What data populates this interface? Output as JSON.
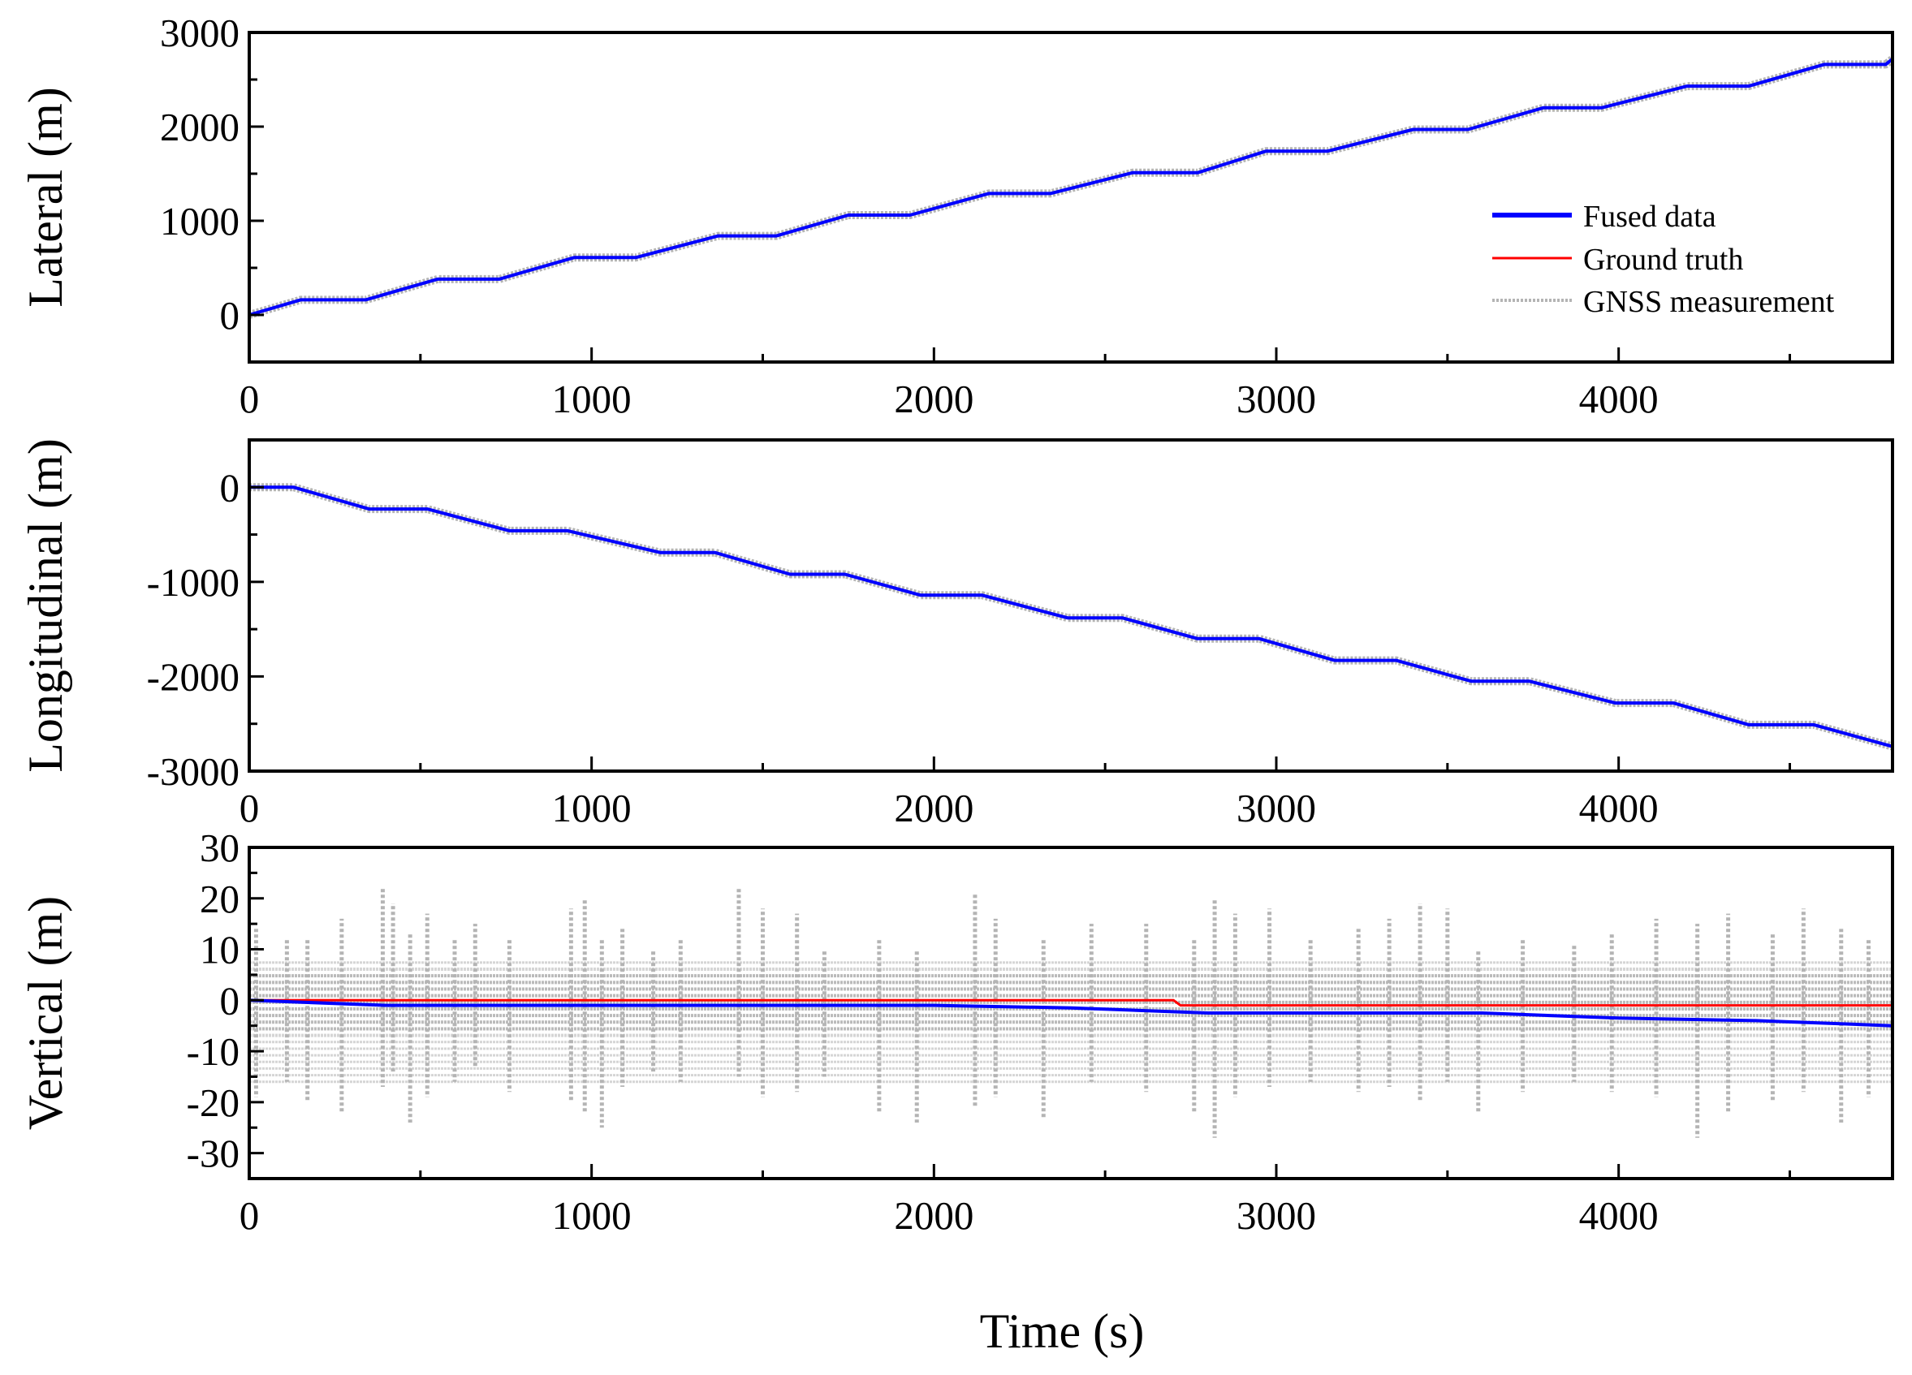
{
  "figure": {
    "xlabel": "Time (s)",
    "colors": {
      "fused": "#0000ff",
      "truth": "#ff0000",
      "gnss": "#b4b4b4",
      "axes": "#000000"
    }
  },
  "legend": {
    "placement": "right, inside top panel",
    "entries": [
      {
        "label": "Fused data",
        "color": "#0000ff"
      },
      {
        "label": "Ground truth",
        "color": "#ff0000"
      },
      {
        "label": "GNSS measurement",
        "color": "#b4b4b4"
      }
    ]
  },
  "chart_data": [
    {
      "type": "line",
      "title": "",
      "xlabel": "",
      "ylabel": "Lateral (m)",
      "xlim": [
        0,
        4800
      ],
      "ylim": [
        -500,
        3000
      ],
      "xticks": [
        0,
        1000,
        2000,
        3000,
        4000
      ],
      "xtick_labels": [
        "0",
        "1000",
        "2000",
        "3000",
        "4000"
      ],
      "yticks": [
        0,
        1000,
        2000,
        3000
      ],
      "ytick_labels": [
        "0",
        "1000",
        "2000",
        "3000"
      ],
      "grid": false,
      "series": [
        {
          "name": "GNSS measurement",
          "x": [
            0,
            150,
            340,
            550,
            730,
            950,
            1130,
            1370,
            1540,
            1750,
            1930,
            2160,
            2340,
            2580,
            2770,
            2970,
            3150,
            3400,
            3560,
            3780,
            3950,
            4200,
            4380,
            4600,
            4780,
            4800
          ],
          "y": [
            0,
            160,
            160,
            380,
            380,
            610,
            610,
            840,
            840,
            1060,
            1060,
            1290,
            1290,
            1510,
            1510,
            1740,
            1740,
            1970,
            1970,
            2200,
            2200,
            2430,
            2430,
            2660,
            2660,
            2720
          ]
        },
        {
          "name": "Ground truth",
          "x": [
            0,
            150,
            340,
            550,
            730,
            950,
            1130,
            1370,
            1540,
            1750,
            1930,
            2160,
            2340,
            2580,
            2770,
            2970,
            3150,
            3400,
            3560,
            3780,
            3950,
            4200,
            4380,
            4600,
            4780,
            4800
          ],
          "y": [
            0,
            160,
            160,
            380,
            380,
            610,
            610,
            840,
            840,
            1060,
            1060,
            1290,
            1290,
            1510,
            1510,
            1740,
            1740,
            1970,
            1970,
            2200,
            2200,
            2430,
            2430,
            2660,
            2660,
            2720
          ]
        },
        {
          "name": "Fused data",
          "x": [
            0,
            150,
            340,
            550,
            730,
            950,
            1130,
            1370,
            1540,
            1750,
            1930,
            2160,
            2340,
            2580,
            2770,
            2970,
            3150,
            3400,
            3560,
            3780,
            3950,
            4200,
            4380,
            4600,
            4780,
            4800
          ],
          "y": [
            0,
            160,
            160,
            380,
            380,
            610,
            610,
            840,
            840,
            1060,
            1060,
            1290,
            1290,
            1510,
            1510,
            1740,
            1740,
            1970,
            1970,
            2200,
            2200,
            2430,
            2430,
            2660,
            2660,
            2720
          ]
        }
      ]
    },
    {
      "type": "line",
      "title": "",
      "xlabel": "",
      "ylabel": "Longitudinal (m)",
      "xlim": [
        0,
        4800
      ],
      "ylim": [
        -3000,
        500
      ],
      "xticks": [
        0,
        1000,
        2000,
        3000,
        4000
      ],
      "xtick_labels": [
        "0",
        "1000",
        "2000",
        "3000",
        "4000"
      ],
      "yticks": [
        0,
        -1000,
        -2000,
        -3000
      ],
      "ytick_labels": [
        "0",
        "-1000",
        "-2000",
        "-3000"
      ],
      "grid": false,
      "series": [
        {
          "name": "GNSS measurement",
          "x": [
            0,
            130,
            350,
            520,
            760,
            930,
            1200,
            1360,
            1580,
            1740,
            1960,
            2140,
            2390,
            2550,
            2770,
            2950,
            3170,
            3350,
            3570,
            3740,
            3990,
            4160,
            4380,
            4570,
            4800
          ],
          "y": [
            0,
            0,
            -230,
            -230,
            -460,
            -460,
            -690,
            -690,
            -920,
            -920,
            -1140,
            -1140,
            -1380,
            -1380,
            -1600,
            -1600,
            -1830,
            -1830,
            -2050,
            -2050,
            -2280,
            -2280,
            -2510,
            -2510,
            -2740
          ]
        },
        {
          "name": "Ground truth",
          "x": [
            0,
            130,
            350,
            520,
            760,
            930,
            1200,
            1360,
            1580,
            1740,
            1960,
            2140,
            2390,
            2550,
            2770,
            2950,
            3170,
            3350,
            3570,
            3740,
            3990,
            4160,
            4380,
            4570,
            4800
          ],
          "y": [
            0,
            0,
            -230,
            -230,
            -460,
            -460,
            -690,
            -690,
            -920,
            -920,
            -1140,
            -1140,
            -1380,
            -1380,
            -1600,
            -1600,
            -1830,
            -1830,
            -2050,
            -2050,
            -2280,
            -2280,
            -2510,
            -2510,
            -2740
          ]
        },
        {
          "name": "Fused data",
          "x": [
            0,
            130,
            350,
            520,
            760,
            930,
            1200,
            1360,
            1580,
            1740,
            1960,
            2140,
            2390,
            2550,
            2770,
            2950,
            3170,
            3350,
            3570,
            3740,
            3990,
            4160,
            4380,
            4570,
            4800
          ],
          "y": [
            0,
            0,
            -230,
            -230,
            -460,
            -460,
            -690,
            -690,
            -920,
            -920,
            -1140,
            -1140,
            -1380,
            -1380,
            -1600,
            -1600,
            -1830,
            -1830,
            -2050,
            -2050,
            -2280,
            -2280,
            -2510,
            -2510,
            -2740
          ]
        }
      ]
    },
    {
      "type": "line",
      "title": "",
      "xlabel": "",
      "ylabel": "Vertical (m)",
      "xlim": [
        0,
        4800
      ],
      "ylim": [
        -35,
        30
      ],
      "xticks": [
        0,
        1000,
        2000,
        3000,
        4000
      ],
      "xtick_labels": [
        "0",
        "1000",
        "2000",
        "3000",
        "4000"
      ],
      "yticks": [
        30,
        20,
        10,
        0,
        -10,
        -20,
        -30
      ],
      "ytick_labels": [
        "30",
        "20",
        "10",
        "0",
        "-10",
        "-20",
        "-30"
      ],
      "grid": false,
      "gnss_spikes": {
        "x": [
          20,
          110,
          170,
          270,
          390,
          420,
          470,
          520,
          600,
          660,
          760,
          940,
          980,
          1030,
          1090,
          1180,
          1260,
          1430,
          1500,
          1600,
          1680,
          1840,
          1950,
          2120,
          2180,
          2320,
          2460,
          2620,
          2760,
          2820,
          2880,
          2980,
          3100,
          3240,
          3330,
          3420,
          3500,
          3590,
          3720,
          3870,
          3980,
          4110,
          4230,
          4320,
          4450,
          4540,
          4650,
          4730
        ],
        "upper": [
          14,
          12,
          12,
          16,
          22,
          19,
          13,
          17,
          12,
          15,
          12,
          18,
          20,
          12,
          14,
          10,
          12,
          22,
          18,
          17,
          10,
          12,
          10,
          21,
          16,
          12,
          15,
          15,
          12,
          20,
          17,
          18,
          12,
          14,
          16,
          19,
          18,
          10,
          12,
          11,
          13,
          16,
          15,
          17,
          13,
          18,
          14,
          12
        ],
        "lower": [
          -19,
          -16,
          -20,
          -22,
          -17,
          -14,
          -24,
          -19,
          -16,
          -13,
          -18,
          -20,
          -22,
          -25,
          -17,
          -14,
          -16,
          -15,
          -19,
          -18,
          -15,
          -22,
          -24,
          -21,
          -19,
          -23,
          -16,
          -18,
          -22,
          -27,
          -19,
          -17,
          -16,
          -18,
          -17,
          -20,
          -16,
          -22,
          -18,
          -16,
          -18,
          -19,
          -27,
          -22,
          -20,
          -18,
          -24,
          -19
        ]
      },
      "series": [
        {
          "name": "Ground truth",
          "x": [
            0,
            2000,
            2700,
            2720,
            3130,
            3150,
            4800
          ],
          "y": [
            0,
            0,
            0,
            -1,
            -1,
            -1,
            -1
          ]
        },
        {
          "name": "Fused data",
          "x": [
            0,
            400,
            800,
            1200,
            1600,
            2000,
            2400,
            2800,
            3200,
            3600,
            4000,
            4400,
            4800
          ],
          "y": [
            0,
            -1,
            -1,
            -1,
            -1,
            -1,
            -1.5,
            -2.5,
            -2.5,
            -2.5,
            -3.5,
            -4,
            -5
          ]
        }
      ]
    }
  ]
}
